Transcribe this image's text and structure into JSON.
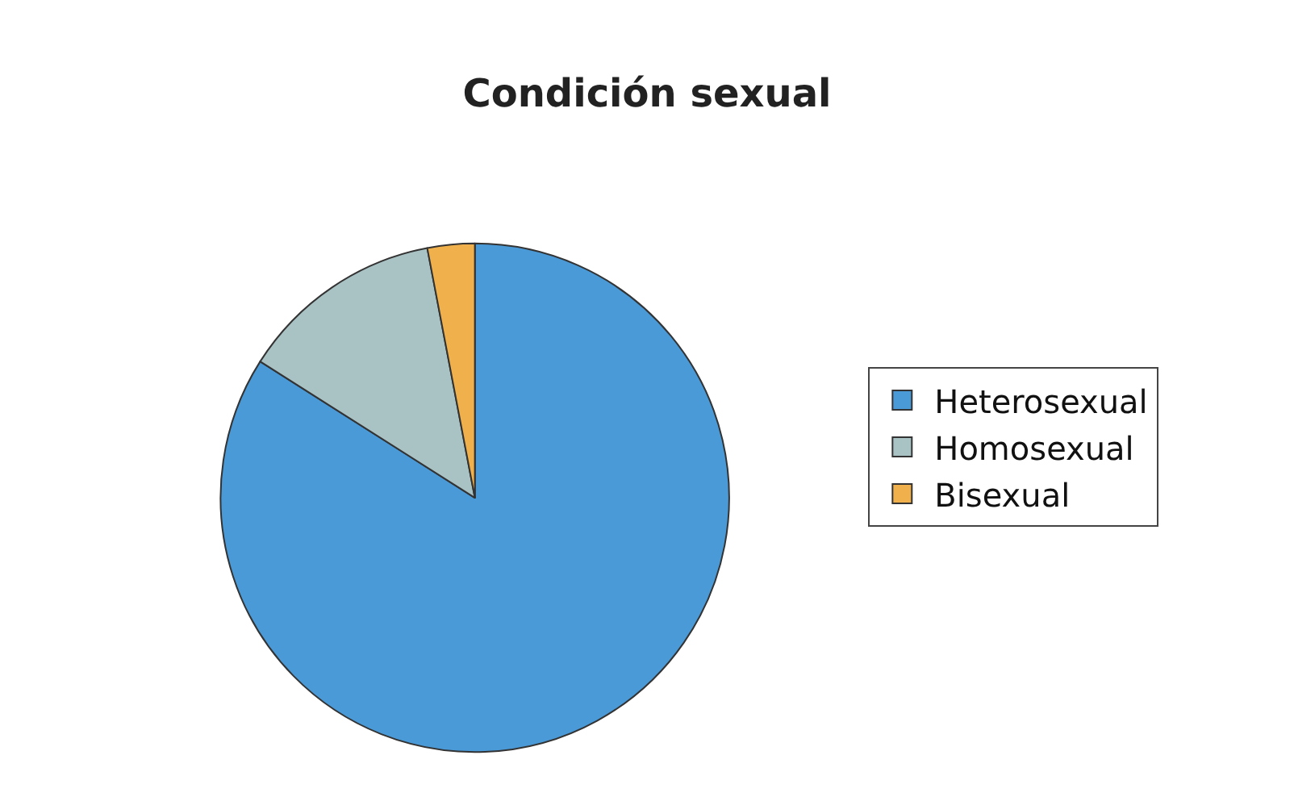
{
  "chart_data": {
    "type": "pie",
    "title": "Condición sexual",
    "categories": [
      "Heterosexual",
      "Homosexual",
      "Bisexual"
    ],
    "values": [
      84,
      13,
      3
    ],
    "colors": [
      "#4a9ad8",
      "#a9c2c4",
      "#f0b04c"
    ],
    "legend": "right"
  }
}
